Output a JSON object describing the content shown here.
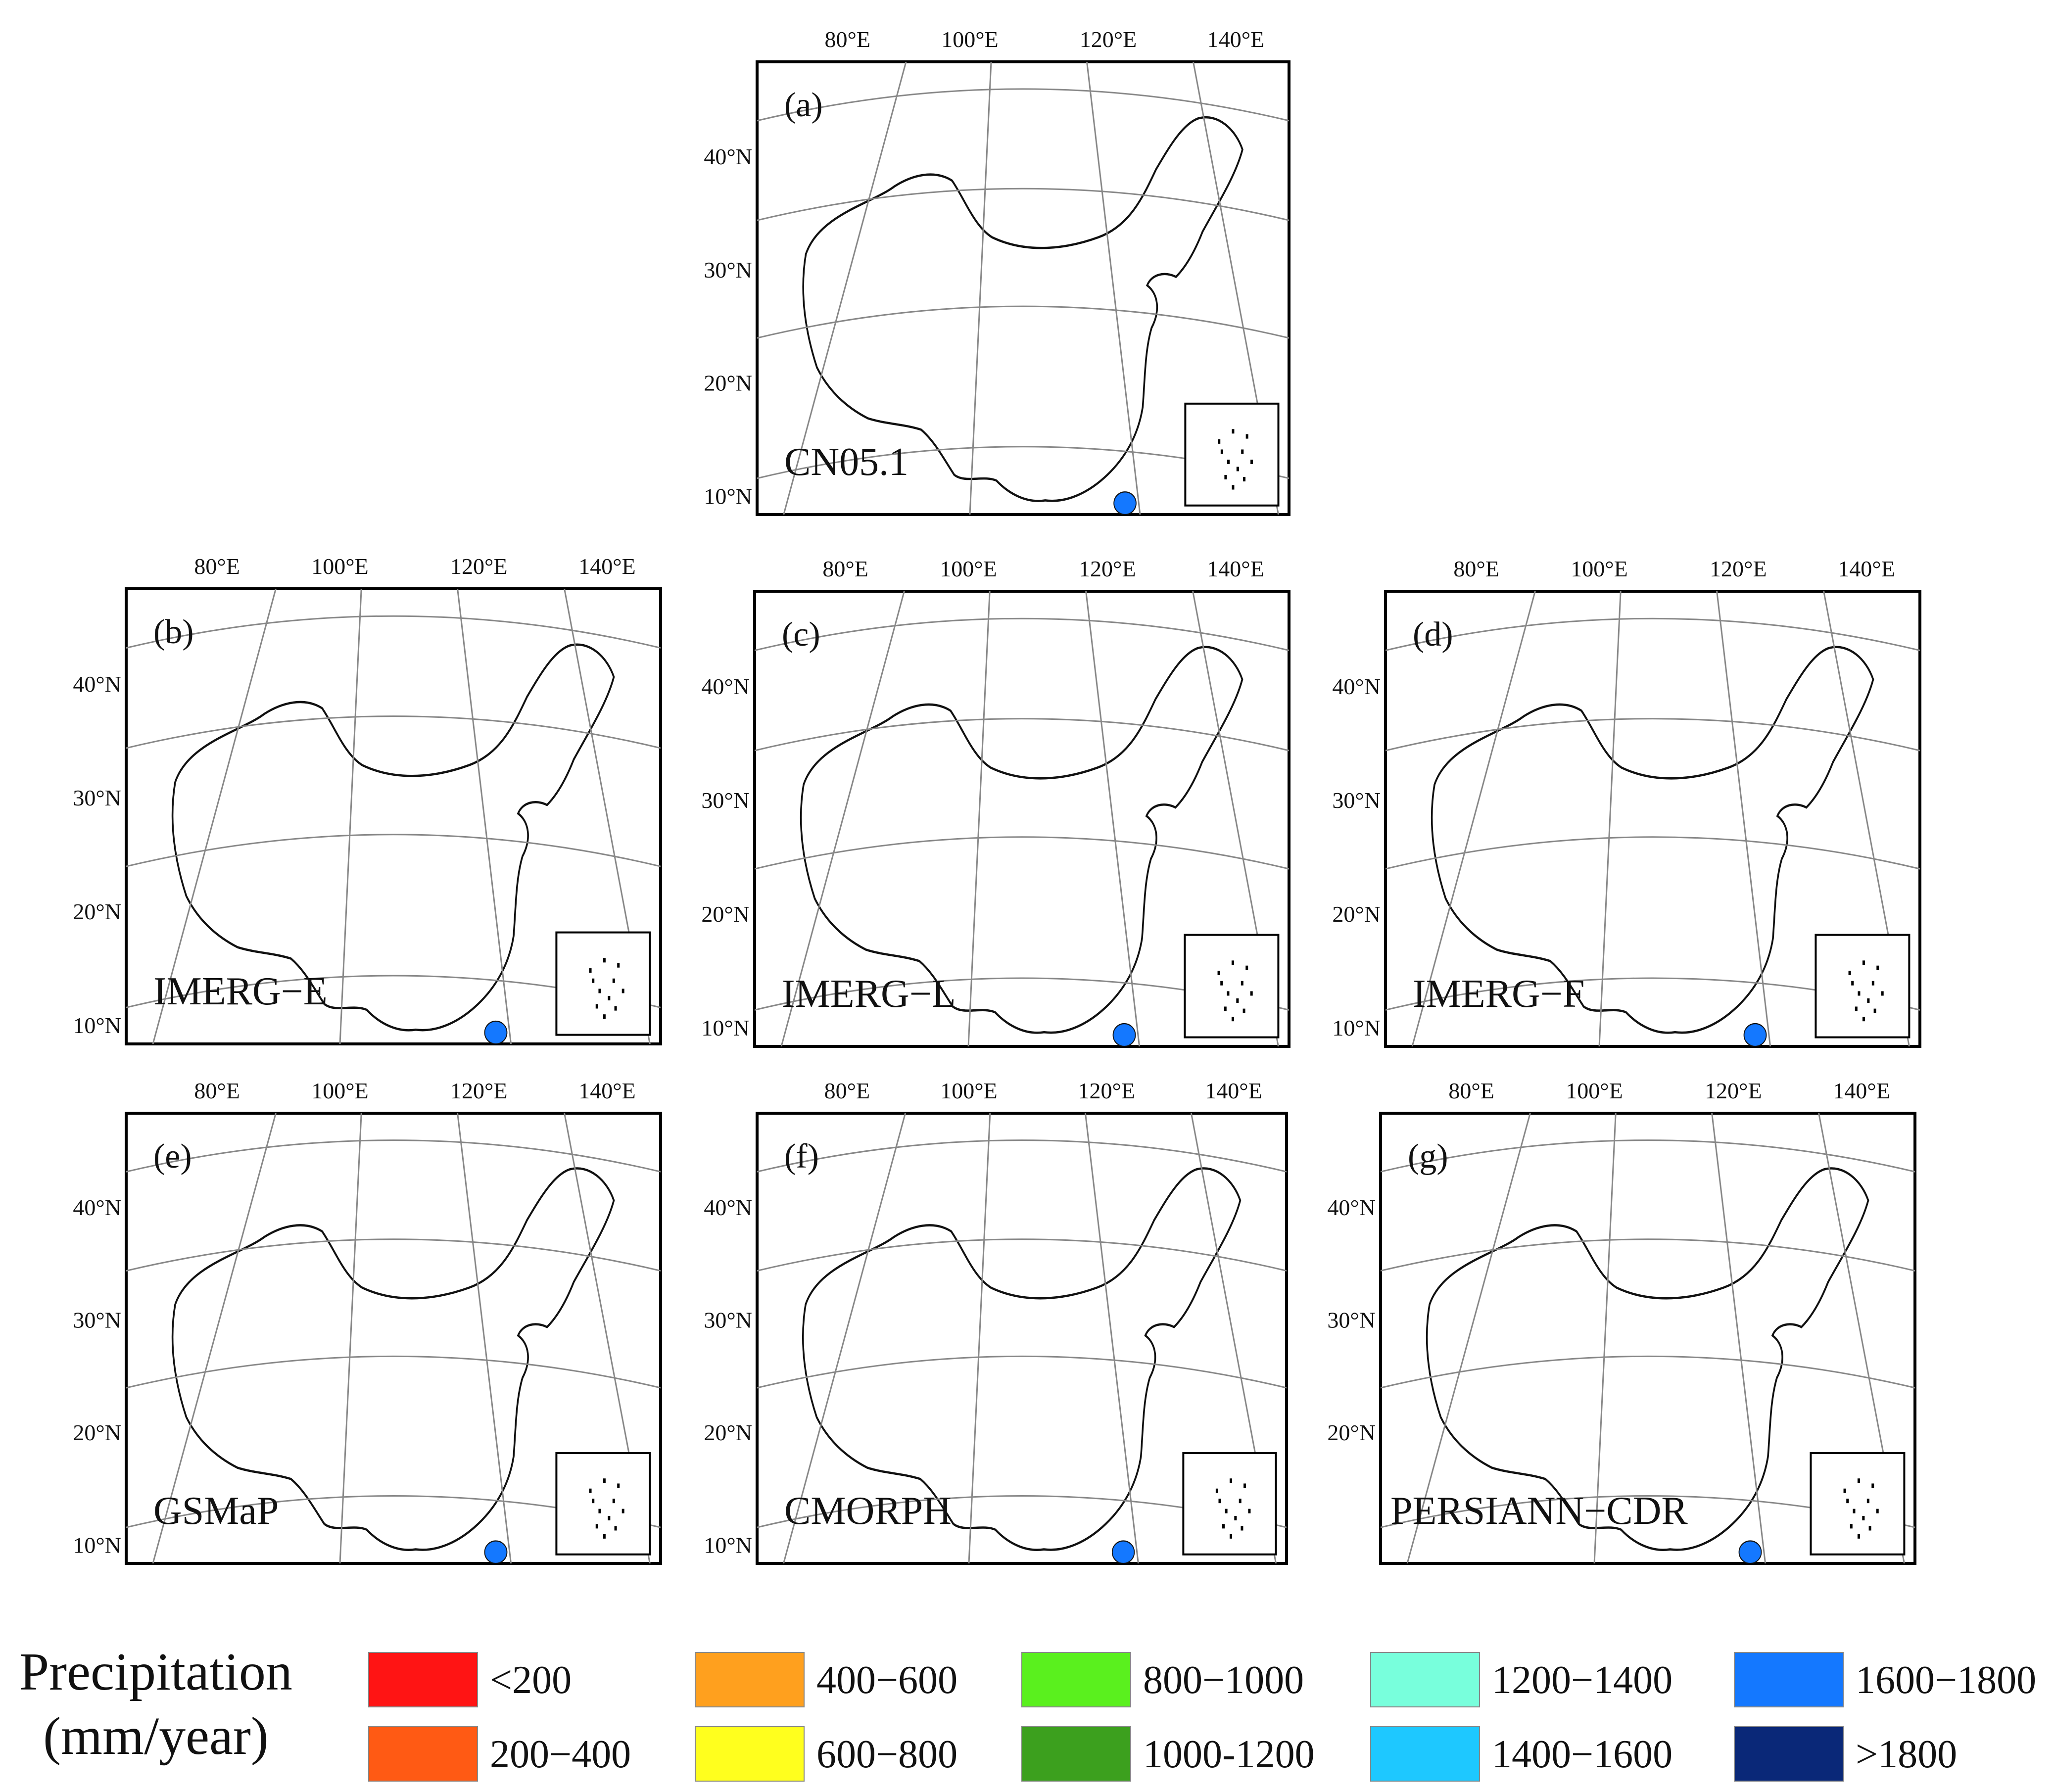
{
  "figure": {
    "legend_title_line1": "Precipitation",
    "legend_title_line2": "(mm/year)"
  },
  "legend": [
    {
      "label": "<200",
      "color": "#ff1414"
    },
    {
      "label": "200−400",
      "color": "#ff5a14"
    },
    {
      "label": "400−600",
      "color": "#ffa01e"
    },
    {
      "label": "600−800",
      "color": "#ffff1e"
    },
    {
      "label": "800−1000",
      "color": "#5af01e"
    },
    {
      "label": "1000-1200",
      "color": "#3ca01e"
    },
    {
      "label": "1200−1400",
      "color": "#78ffdc"
    },
    {
      "label": "1400−1600",
      "color": "#1ec8ff"
    },
    {
      "label": "1600−1800",
      "color": "#1478ff"
    },
    {
      "label": ">1800",
      "color": "#0a2878"
    }
  ],
  "axes": {
    "lon_labels": [
      "80°E",
      "100°E",
      "120°E",
      "140°E"
    ],
    "lat_labels": [
      "40°N",
      "30°N",
      "20°N",
      "10°N"
    ]
  },
  "panels": [
    {
      "id": "a",
      "panel_label": "(a)",
      "dataset": "CN05.1",
      "show_10N": true
    },
    {
      "id": "b",
      "panel_label": "(b)",
      "dataset": "IMERG−E",
      "show_10N": true
    },
    {
      "id": "c",
      "panel_label": "(c)",
      "dataset": "IMERG−L",
      "show_10N": true
    },
    {
      "id": "d",
      "panel_label": "(d)",
      "dataset": "IMERG−F",
      "show_10N": true
    },
    {
      "id": "e",
      "panel_label": "(e)",
      "dataset": "GSMaP",
      "show_10N": true
    },
    {
      "id": "f",
      "panel_label": "(f)",
      "dataset": "CMORPH",
      "show_10N": true
    },
    {
      "id": "g",
      "panel_label": "(g)",
      "dataset": "PERSIANN−CDR",
      "show_10N": false
    }
  ]
}
